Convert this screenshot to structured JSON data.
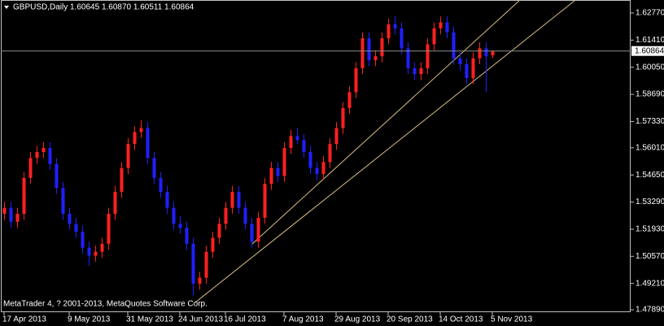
{
  "chart_data": {
    "type": "candlestick",
    "title": "GBPUSD,Daily  1.60645 1.60870 1.60511 1.60864",
    "footer": "MetaTrader 4, ? 2001-2013, MetaQuotes Software Corp.",
    "up_color": "#ff2020",
    "down_color": "#2020ff",
    "ylim": [
      1.4777,
      1.6342
    ],
    "yticks": [
      {
        "value": 1.6277,
        "label": "1.62770"
      },
      {
        "value": 1.6141,
        "label": "1.61410"
      },
      {
        "value": 1.6005,
        "label": "1.60050"
      },
      {
        "value": 1.5869,
        "label": "1.58690"
      },
      {
        "value": 1.5733,
        "label": "1.57330"
      },
      {
        "value": 1.5601,
        "label": "1.56010"
      },
      {
        "value": 1.5465,
        "label": "1.54650"
      },
      {
        "value": 1.5329,
        "label": "1.53290"
      },
      {
        "value": 1.5193,
        "label": "1.51930"
      },
      {
        "value": 1.5057,
        "label": "1.50570"
      },
      {
        "value": 1.4921,
        "label": "1.49210"
      },
      {
        "value": 1.4789,
        "label": "1.47890"
      }
    ],
    "current_price": {
      "value": 1.60864,
      "label": "1.60864"
    },
    "categories": [
      "17 Apr 2013",
      null,
      null,
      null,
      null,
      null,
      null,
      null,
      null,
      null,
      "9 May 2013",
      null,
      null,
      null,
      null,
      null,
      null,
      null,
      null,
      "31 May 2013",
      null,
      null,
      null,
      null,
      null,
      null,
      null,
      "24 Jun 2013",
      null,
      null,
      null,
      null,
      null,
      null,
      "16 Jul 2013",
      null,
      null,
      null,
      null,
      null,
      null,
      null,
      null,
      "7 Aug 2013",
      null,
      null,
      null,
      null,
      null,
      null,
      null,
      "29 Aug 2013",
      null,
      null,
      null,
      null,
      null,
      null,
      null,
      "20 Sep 2013",
      null,
      null,
      null,
      null,
      null,
      null,
      null,
      "14 Oct 2013",
      null,
      null,
      null,
      null,
      null,
      null,
      null,
      "5 Nov 2013"
    ],
    "ohlc": [
      [
        1.527,
        1.533,
        1.524,
        1.53
      ],
      [
        1.53,
        1.533,
        1.52,
        1.523
      ],
      [
        1.523,
        1.53,
        1.52,
        1.527
      ],
      [
        1.527,
        1.548,
        1.524,
        1.545
      ],
      [
        1.545,
        1.558,
        1.542,
        1.555
      ],
      [
        1.555,
        1.561,
        1.552,
        1.558
      ],
      [
        1.558,
        1.563,
        1.555,
        1.56
      ],
      [
        1.56,
        1.563,
        1.549,
        1.552
      ],
      [
        1.552,
        1.555,
        1.537,
        1.54
      ],
      [
        1.54,
        1.543,
        1.524,
        1.527
      ],
      [
        1.527,
        1.53,
        1.519,
        1.522
      ],
      [
        1.522,
        1.525,
        1.515,
        1.518
      ],
      [
        1.518,
        1.521,
        1.507,
        1.51
      ],
      [
        1.51,
        1.513,
        1.501,
        1.506
      ],
      [
        1.506,
        1.511,
        1.503,
        1.508
      ],
      [
        1.508,
        1.515,
        1.505,
        1.512
      ],
      [
        1.512,
        1.53,
        1.509,
        1.527
      ],
      [
        1.527,
        1.541,
        1.524,
        1.538
      ],
      [
        1.538,
        1.553,
        1.535,
        1.55
      ],
      [
        1.55,
        1.565,
        1.547,
        1.562
      ],
      [
        1.562,
        1.571,
        1.559,
        1.568
      ],
      [
        1.568,
        1.574,
        1.565,
        1.57
      ],
      [
        1.57,
        1.573,
        1.552,
        1.555
      ],
      [
        1.555,
        1.558,
        1.542,
        1.545
      ],
      [
        1.545,
        1.548,
        1.535,
        1.538
      ],
      [
        1.538,
        1.541,
        1.527,
        1.53
      ],
      [
        1.53,
        1.533,
        1.519,
        1.522
      ],
      [
        1.522,
        1.526,
        1.517,
        1.52
      ],
      [
        1.52,
        1.523,
        1.509,
        1.512
      ],
      [
        1.512,
        1.515,
        1.486,
        1.492
      ],
      [
        1.492,
        1.498,
        1.489,
        1.495
      ],
      [
        1.495,
        1.511,
        1.492,
        1.508
      ],
      [
        1.508,
        1.518,
        1.505,
        1.515
      ],
      [
        1.515,
        1.525,
        1.512,
        1.522
      ],
      [
        1.522,
        1.533,
        1.519,
        1.53
      ],
      [
        1.53,
        1.541,
        1.527,
        1.538
      ],
      [
        1.538,
        1.541,
        1.527,
        1.53
      ],
      [
        1.53,
        1.533,
        1.519,
        1.522
      ],
      [
        1.522,
        1.525,
        1.51,
        1.513
      ],
      [
        1.513,
        1.528,
        1.51,
        1.525
      ],
      [
        1.525,
        1.545,
        1.522,
        1.542
      ],
      [
        1.542,
        1.553,
        1.539,
        1.55
      ],
      [
        1.55,
        1.553,
        1.543,
        1.546
      ],
      [
        1.546,
        1.563,
        1.543,
        1.56
      ],
      [
        1.56,
        1.569,
        1.557,
        1.566
      ],
      [
        1.566,
        1.57,
        1.562,
        1.564
      ],
      [
        1.564,
        1.567,
        1.555,
        1.558
      ],
      [
        1.558,
        1.561,
        1.547,
        1.55
      ],
      [
        1.55,
        1.553,
        1.544,
        1.547
      ],
      [
        1.547,
        1.556,
        1.544,
        1.553
      ],
      [
        1.553,
        1.565,
        1.55,
        1.562
      ],
      [
        1.562,
        1.573,
        1.559,
        1.57
      ],
      [
        1.57,
        1.583,
        1.567,
        1.58
      ],
      [
        1.58,
        1.591,
        1.577,
        1.588
      ],
      [
        1.588,
        1.603,
        1.585,
        1.6
      ],
      [
        1.6,
        1.618,
        1.597,
        1.615
      ],
      [
        1.615,
        1.618,
        1.601,
        1.604
      ],
      [
        1.604,
        1.609,
        1.601,
        1.606
      ],
      [
        1.606,
        1.618,
        1.603,
        1.615
      ],
      [
        1.615,
        1.625,
        1.612,
        1.622
      ],
      [
        1.622,
        1.626,
        1.617,
        1.62
      ],
      [
        1.62,
        1.623,
        1.607,
        1.61
      ],
      [
        1.61,
        1.613,
        1.597,
        1.6
      ],
      [
        1.6,
        1.603,
        1.594,
        1.597
      ],
      [
        1.597,
        1.603,
        1.594,
        1.6
      ],
      [
        1.6,
        1.615,
        1.597,
        1.612
      ],
      [
        1.612,
        1.623,
        1.609,
        1.62
      ],
      [
        1.62,
        1.626,
        1.617,
        1.623
      ],
      [
        1.623,
        1.626,
        1.615,
        1.618
      ],
      [
        1.618,
        1.621,
        1.602,
        1.605
      ],
      [
        1.605,
        1.608,
        1.599,
        1.602
      ],
      [
        1.602,
        1.605,
        1.592,
        1.595
      ],
      [
        1.595,
        1.608,
        1.592,
        1.605
      ],
      [
        1.605,
        1.613,
        1.602,
        1.61
      ],
      [
        1.61,
        1.613,
        1.588,
        1.606
      ],
      [
        1.60645,
        1.6087,
        1.60511,
        1.60864
      ]
    ]
  }
}
